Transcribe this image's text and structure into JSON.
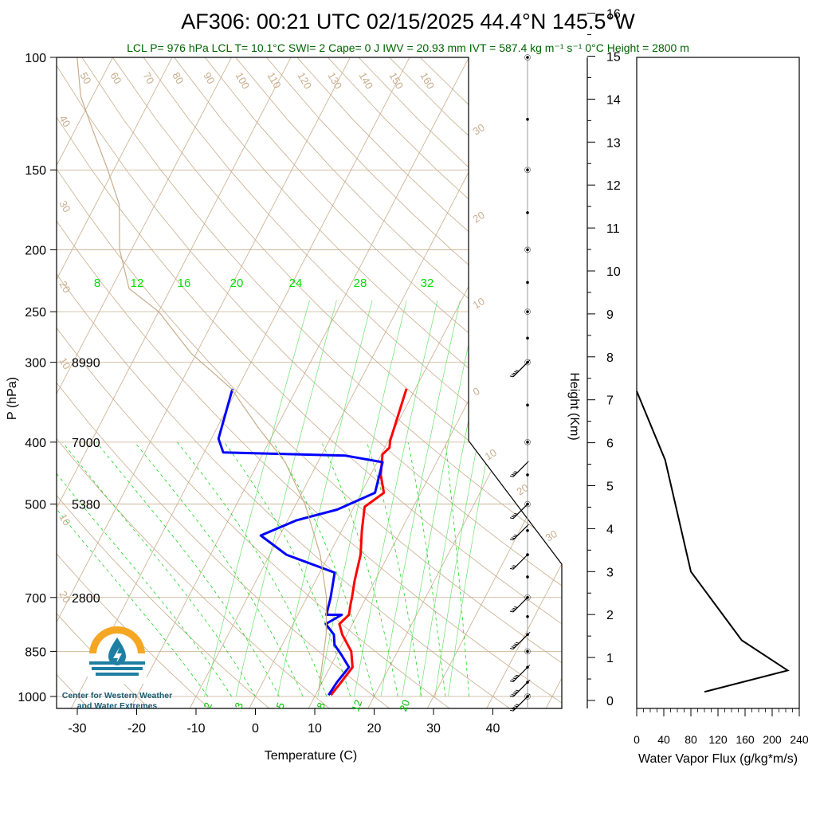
{
  "header": {
    "title": "AF306: 00:21 UTC 02/15/2025  44.4°N 145.5°W",
    "subtitle": "LCL P= 976 hPa  LCL T= 10.1°C  SWI= 2  Cape= 0 J  IWV = 20.93 mm  IVT = 587.4 kg m⁻¹ s⁻¹  0°C Height = 2800 m"
  },
  "logo": {
    "line1": "Center for Western Weather",
    "line2": "and Water Extremes"
  },
  "colors": {
    "temperature": "#ff0000",
    "dewpoint": "#0000ff",
    "isotherm": "#c8ad8c",
    "mixing_ratio": "#00d000",
    "flux": "#000000"
  },
  "chart_data": [
    {
      "type": "line",
      "name": "skew-t",
      "xlabel": "Temperature (C)",
      "ylabel": "P (hPa)",
      "y2label": "Height (Km)",
      "x_ticks": [
        -30,
        -20,
        -10,
        0,
        10,
        20,
        30,
        40
      ],
      "y_ticks": [
        100,
        150,
        200,
        250,
        300,
        400,
        500,
        700,
        850,
        1000
      ],
      "y2_ticks": [
        0,
        1,
        2,
        3,
        4,
        5,
        6,
        7,
        8,
        9,
        10,
        11,
        12,
        13,
        14,
        15,
        16
      ],
      "xlim": [
        -34,
        52
      ],
      "ylim": [
        1050,
        100
      ],
      "height_labels": [
        {
          "p": 300,
          "text": "8990"
        },
        {
          "p": 400,
          "text": "7000"
        },
        {
          "p": 500,
          "text": "5380"
        },
        {
          "p": 700,
          "text": "2800"
        }
      ],
      "isotherm_labels_top": [
        "50",
        "60",
        "70",
        "80",
        "90",
        "100",
        "110",
        "120",
        "130",
        "140",
        "150",
        "160"
      ],
      "isotherm_labels_left": [
        "40",
        "30",
        "20",
        "10",
        "10",
        "20"
      ],
      "isotherm_labels_right": [
        "30",
        "20",
        "10",
        "0",
        "10",
        "20",
        "30"
      ],
      "mixing_ratio_labels_upper": [
        "8",
        "12",
        "16",
        "20",
        "24",
        "28",
        "32"
      ],
      "mixing_ratio_labels_lower": [
        "2",
        "3",
        "5",
        "8",
        "12",
        "20"
      ],
      "series": [
        {
          "name": "temperature",
          "points": [
            [
              12.6,
              995
            ],
            [
              13.2,
              950
            ],
            [
              13.8,
              900
            ],
            [
              12.2,
              850
            ],
            [
              9.2,
              800
            ],
            [
              7.8,
              770
            ],
            [
              8.6,
              745
            ],
            [
              7.9,
              715
            ],
            [
              7.6,
              700
            ],
            [
              6.6,
              660
            ],
            [
              5.3,
              600
            ],
            [
              3.4,
              550
            ],
            [
              1.8,
              505
            ],
            [
              3.8,
              480
            ],
            [
              1.7,
              450
            ],
            [
              0.2,
              418
            ],
            [
              0.8,
              408
            ],
            [
              0.3,
              398
            ],
            [
              -0.8,
              355
            ],
            [
              -1.5,
              330
            ]
          ]
        },
        {
          "name": "dewpoint",
          "points": [
            [
              12.2,
              995
            ],
            [
              12.5,
              950
            ],
            [
              13.2,
              900
            ],
            [
              10.8,
              860
            ],
            [
              8.8,
              830
            ],
            [
              7.8,
              800
            ],
            [
              5.5,
              770
            ],
            [
              7.4,
              745
            ],
            [
              4.8,
              745
            ],
            [
              4.0,
              700
            ],
            [
              2.5,
              640
            ],
            [
              -7.2,
              600
            ],
            [
              -13.2,
              560
            ],
            [
              -8.5,
              530
            ],
            [
              -2.6,
              510
            ],
            [
              2.3,
              480
            ],
            [
              0.9,
              430
            ],
            [
              -5.9,
              420
            ],
            [
              -26.8,
              415
            ],
            [
              -28.8,
              395
            ],
            [
              -30.8,
              330
            ]
          ]
        },
        {
          "name": "parcel",
          "points": [
            [
              10.1,
              976
            ],
            [
              6.5,
              800
            ],
            [
              3.3,
              700
            ],
            [
              -1.5,
              600
            ],
            [
              -8.5,
              500
            ],
            [
              -15.5,
              430
            ],
            [
              -23,
              380
            ],
            [
              -31,
              330
            ],
            [
              -41,
              290
            ],
            [
              -50,
              250
            ],
            [
              -57,
              230
            ],
            [
              -62,
              200
            ],
            [
              -66,
              170
            ],
            [
              -71,
              150
            ],
            [
              -77,
              130
            ],
            [
              -82,
              115
            ],
            [
              -86,
              100
            ]
          ]
        }
      ],
      "winds": [
        {
          "p": 1000,
          "spd": 50
        },
        {
          "p": 950,
          "spd": 50
        },
        {
          "p": 900,
          "spd": 50
        },
        {
          "p": 800,
          "spd": 50
        },
        {
          "p": 700,
          "spd": 40
        },
        {
          "p": 600,
          "spd": 30
        },
        {
          "p": 540,
          "spd": 40
        },
        {
          "p": 500,
          "spd": 40
        },
        {
          "p": 430,
          "spd": 40
        },
        {
          "p": 300,
          "spd": 45
        }
      ]
    },
    {
      "type": "line",
      "name": "water-vapor-flux",
      "xlabel": "Water Vapor Flux (g/kg*m/s)",
      "x_ticks": [
        0,
        40,
        80,
        120,
        160,
        200,
        240
      ],
      "xlim": [
        0,
        240
      ],
      "ylim": [
        0,
        16.5
      ],
      "points": [
        [
          100,
          0.2
        ],
        [
          223,
          0.7
        ],
        [
          155,
          1.4
        ],
        [
          80,
          3.0
        ],
        [
          42,
          5.6
        ],
        [
          0,
          7.2
        ]
      ]
    }
  ]
}
